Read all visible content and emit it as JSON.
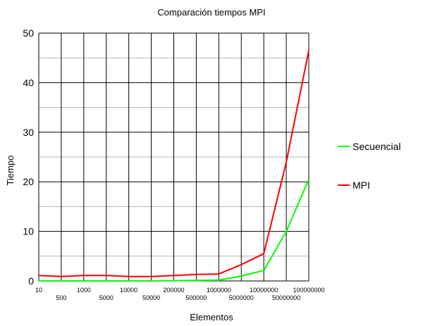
{
  "chart_data": {
    "type": "line",
    "title": "Comparación tiempos MPI",
    "xlabel": "Elementos",
    "ylabel": "Tiempo",
    "x": [
      "10",
      "500",
      "1000",
      "5000",
      "10000",
      "50000",
      "200000",
      "500000",
      "1000000",
      "5000000",
      "10000000",
      "50000000",
      "100000000"
    ],
    "ylim": [
      0,
      50
    ],
    "yticks": [
      "0",
      "10",
      "20",
      "30",
      "40",
      "50"
    ],
    "grid": true,
    "legend_position": "right",
    "series": [
      {
        "name": "Secuencial",
        "color": "#00ff00",
        "values": [
          0.0,
          0.0,
          0.0,
          0.0,
          0.0,
          0.0,
          0.05,
          0.1,
          0.15,
          1.0,
          2.1,
          10.0,
          20.5
        ]
      },
      {
        "name": "MPI",
        "color": "#ff0000",
        "values": [
          1.1,
          0.9,
          1.1,
          1.1,
          0.9,
          0.9,
          1.1,
          1.3,
          1.4,
          3.3,
          5.5,
          24.0,
          46.5
        ]
      }
    ]
  }
}
